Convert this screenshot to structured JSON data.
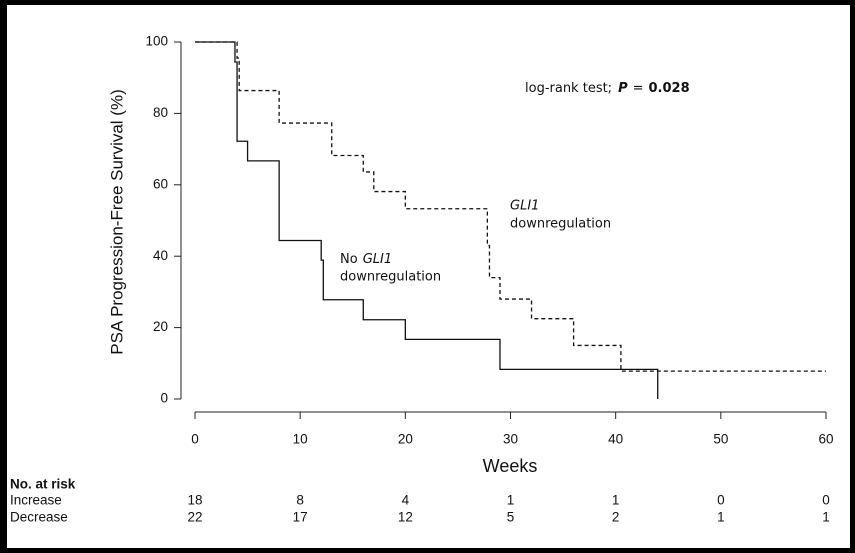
{
  "chart_data": {
    "type": "step",
    "y_label": "PSA Progression-Free Survival (%)",
    "x_label": "Weeks",
    "xlim": [
      0,
      60
    ],
    "xticks": [
      0,
      10,
      20,
      30,
      40,
      50,
      60
    ],
    "ylim": [
      0,
      100
    ],
    "yticks": [
      0,
      20,
      40,
      60,
      80,
      100
    ],
    "series": [
      {
        "name": "No GLI1 downregulation",
        "color": "#111111",
        "dash": "solid",
        "x": [
          0,
          3.8,
          4,
          5,
          8,
          12,
          12.2,
          16,
          20,
          29,
          44
        ],
        "values": [
          100,
          94.4,
          72.2,
          66.7,
          44.4,
          38.9,
          27.8,
          22.2,
          16.7,
          8.3,
          0
        ]
      },
      {
        "name": "GLI1 downregulation",
        "color": "#111111",
        "dash": "dashed",
        "x": [
          0,
          4,
          4.2,
          8,
          13,
          16,
          17,
          20,
          27.8,
          28,
          29,
          32,
          36,
          40.5,
          60
        ],
        "values": [
          100,
          95.5,
          86.4,
          77.3,
          68.2,
          63.6,
          58.1,
          53.3,
          43,
          34,
          28,
          22.5,
          15,
          7.8,
          7.8
        ]
      }
    ],
    "annotations": [
      {
        "parts": [
          "log-rank test;",
          "P",
          "=",
          "0.028"
        ]
      },
      {
        "parts": [
          "GLI1",
          "downregulation"
        ]
      },
      {
        "parts": [
          "No",
          "GLI1",
          "downregulation"
        ]
      }
    ],
    "risk_table": {
      "title": "No. at risk",
      "rows": [
        {
          "label": "Increase",
          "values": [
            18,
            8,
            4,
            1,
            1,
            0,
            0
          ]
        },
        {
          "label": "Decrease",
          "values": [
            22,
            17,
            12,
            5,
            2,
            1,
            1
          ]
        }
      ]
    }
  }
}
